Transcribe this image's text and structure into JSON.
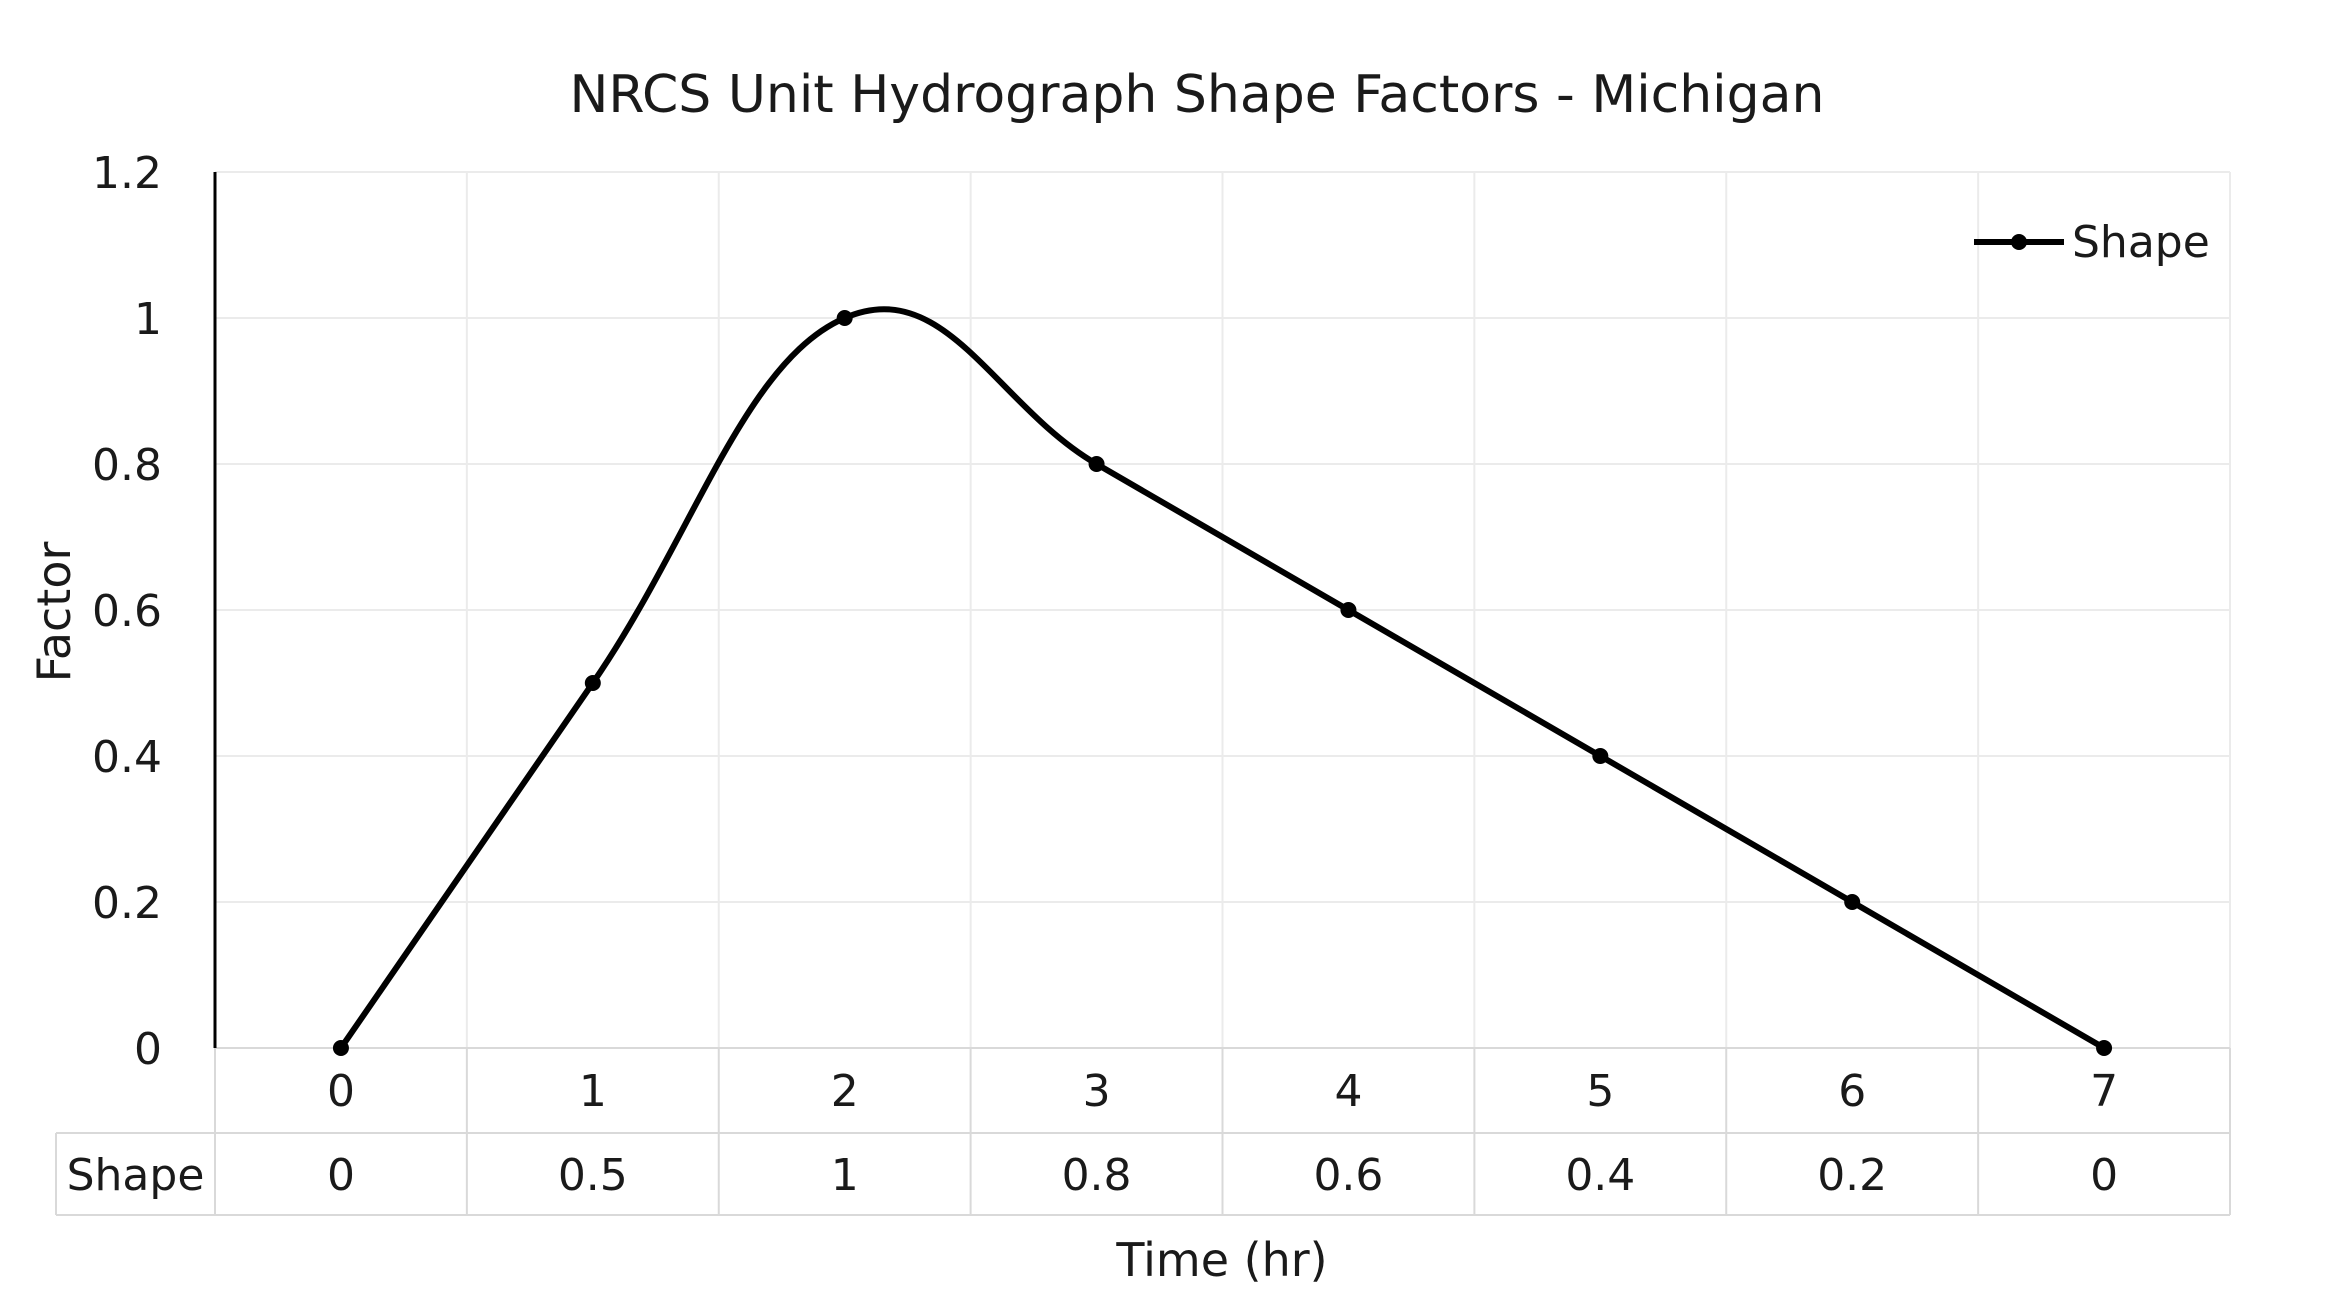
{
  "chart_data": {
    "type": "line",
    "title": "NRCS Unit Hydrograph Shape Factors - Michigan",
    "xlabel": "Time (hr)",
    "ylabel": "Factor",
    "categories": [
      "0",
      "1",
      "2",
      "3",
      "4",
      "5",
      "6",
      "7"
    ],
    "series": [
      {
        "name": "Shape",
        "values": [
          0,
          0.5,
          1,
          0.8,
          0.6,
          0.4,
          0.2,
          0
        ],
        "smooth": true,
        "markers": true
      }
    ],
    "ylim": [
      0,
      1.2
    ],
    "yticks": [
      "0",
      "0.2",
      "0.4",
      "0.6",
      "0.8",
      "1",
      "1.2"
    ],
    "data_table": {
      "row_label": "Shape",
      "values": [
        "0",
        "0.5",
        "1",
        "0.8",
        "0.6",
        "0.4",
        "0.2",
        "0"
      ]
    },
    "grid": true,
    "legend": "top-right",
    "colors": {
      "line": "#000000",
      "grid": "#ebebeb",
      "table_border": "#d9d9d9"
    }
  }
}
